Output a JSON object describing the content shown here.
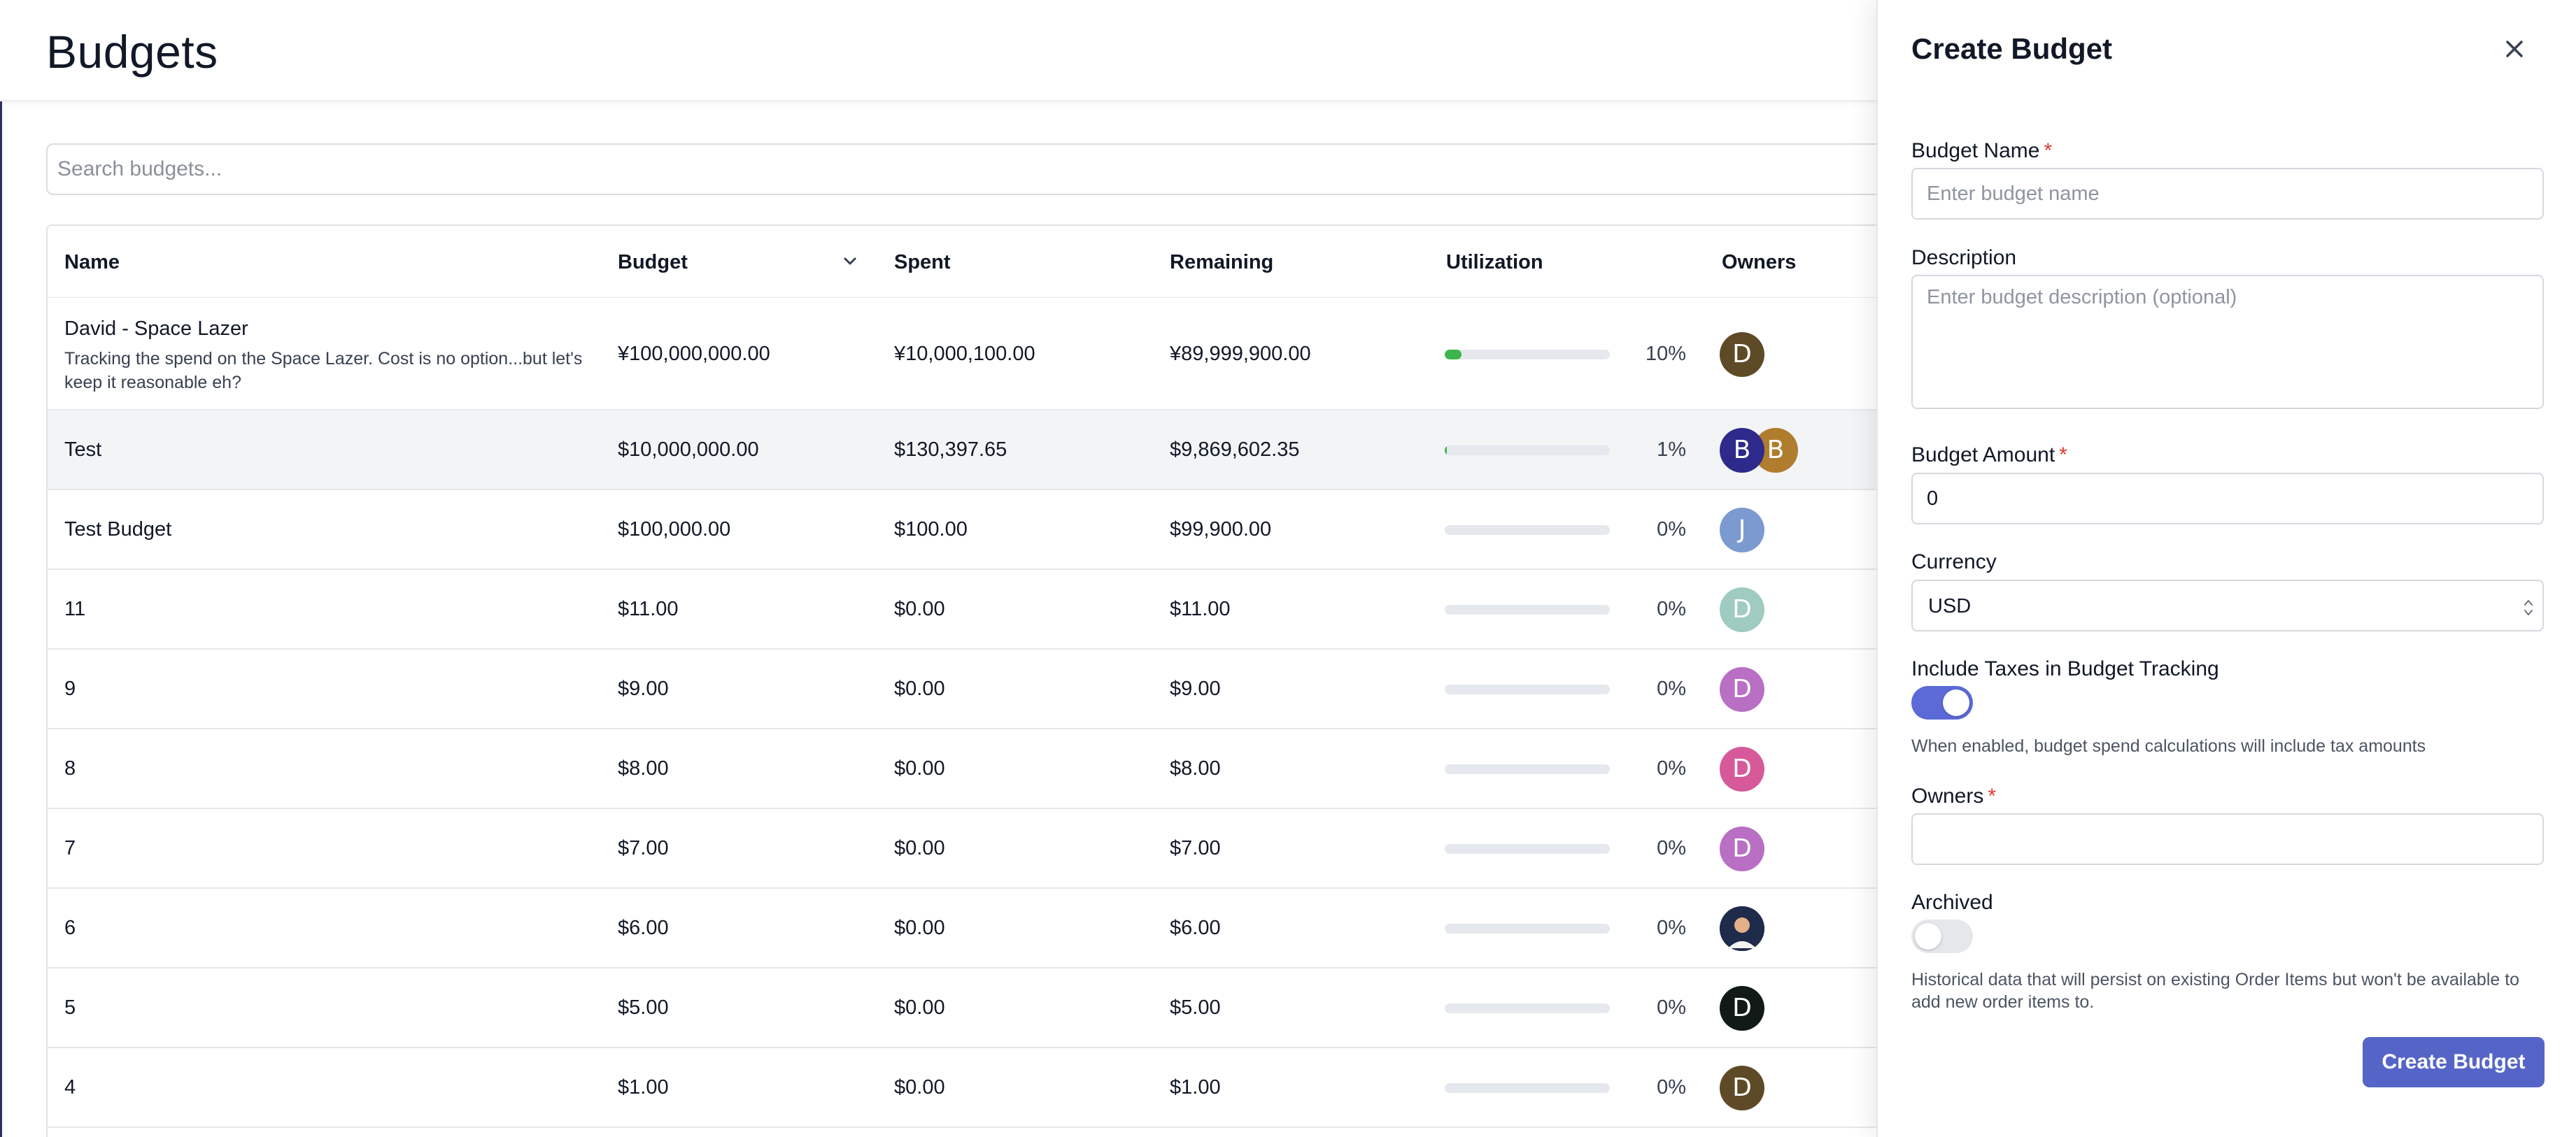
{
  "page": {
    "title": "Budgets"
  },
  "search": {
    "placeholder": "Search budgets...",
    "value": ""
  },
  "table": {
    "headers": {
      "name": "Name",
      "budget": "Budget",
      "spent": "Spent",
      "remaining": "Remaining",
      "utilization": "Utilization",
      "owners": "Owners"
    },
    "rows": [
      {
        "name": "David - Space Lazer",
        "description": "Tracking the spend on the Space Lazer. Cost is no option...but let's keep it reasonable eh?",
        "budget": "¥100,000,000.00",
        "spent": "¥10,000,100.00",
        "remaining": "¥89,999,900.00",
        "utilization": "10%",
        "utilization_value": 0.1,
        "owners": [
          {
            "initial": "D",
            "color": "#5e4a26"
          }
        ]
      },
      {
        "name": "Test",
        "description": "",
        "budget": "$10,000,000.00",
        "spent": "$130,397.65",
        "remaining": "$9,869,602.35",
        "utilization": "1%",
        "utilization_value": 0.013,
        "owners": [
          {
            "initial": "B",
            "color": "#2d2a8c"
          },
          {
            "initial": "B",
            "color": "#b07c2e"
          }
        ]
      },
      {
        "name": "Test Budget",
        "description": "",
        "budget": "$100,000.00",
        "spent": "$100.00",
        "remaining": "$99,900.00",
        "utilization": "0%",
        "utilization_value": 0,
        "owners": [
          {
            "initial": "J",
            "color": "#7b9bd0"
          }
        ]
      },
      {
        "name": "11",
        "description": "",
        "budget": "$11.00",
        "spent": "$0.00",
        "remaining": "$11.00",
        "utilization": "0%",
        "utilization_value": 0,
        "owners": [
          {
            "initial": "D",
            "color": "#9fcbc0"
          }
        ]
      },
      {
        "name": "9",
        "description": "",
        "budget": "$9.00",
        "spent": "$0.00",
        "remaining": "$9.00",
        "utilization": "0%",
        "utilization_value": 0,
        "owners": [
          {
            "initial": "D",
            "color": "#b86fc4"
          }
        ]
      },
      {
        "name": "8",
        "description": "",
        "budget": "$8.00",
        "spent": "$0.00",
        "remaining": "$8.00",
        "utilization": "0%",
        "utilization_value": 0,
        "owners": [
          {
            "initial": "D",
            "color": "#d65a9a"
          }
        ]
      },
      {
        "name": "7",
        "description": "",
        "budget": "$7.00",
        "spent": "$0.00",
        "remaining": "$7.00",
        "utilization": "0%",
        "utilization_value": 0,
        "owners": [
          {
            "initial": "D",
            "color": "#b86fc4"
          }
        ]
      },
      {
        "name": "6",
        "description": "",
        "budget": "$6.00",
        "spent": "$0.00",
        "remaining": "$6.00",
        "utilization": "0%",
        "utilization_value": 0,
        "owners": [
          {
            "initial": "",
            "color": "#1f2b4a",
            "photo": true
          }
        ]
      },
      {
        "name": "5",
        "description": "",
        "budget": "$5.00",
        "spent": "$0.00",
        "remaining": "$5.00",
        "utilization": "0%",
        "utilization_value": 0,
        "owners": [
          {
            "initial": "D",
            "color": "#111a16"
          }
        ]
      },
      {
        "name": "4",
        "description": "",
        "budget": "$1.00",
        "spent": "$0.00",
        "remaining": "$1.00",
        "utilization": "0%",
        "utilization_value": 0,
        "owners": [
          {
            "initial": "D",
            "color": "#5e4a26"
          }
        ]
      }
    ]
  },
  "panel": {
    "title": "Create Budget",
    "budget_name": {
      "label": "Budget Name",
      "placeholder": "Enter budget name",
      "value": ""
    },
    "description": {
      "label": "Description",
      "placeholder": "Enter budget description (optional)",
      "value": ""
    },
    "amount": {
      "label": "Budget Amount",
      "value": "0"
    },
    "currency": {
      "label": "Currency",
      "value": "USD"
    },
    "include_taxes": {
      "label": "Include Taxes in Budget Tracking",
      "enabled": true,
      "help": "When enabled, budget spend calculations will include tax amounts"
    },
    "owners": {
      "label": "Owners",
      "value": ""
    },
    "archived": {
      "label": "Archived",
      "enabled": false,
      "help": "Historical data that will persist on existing Order Items but won't be available to add new order items to."
    },
    "required_mark": "*",
    "submit_label": "Create Budget"
  },
  "colors": {
    "accent": "#5565c7",
    "toggle_on": "#5b6ad6",
    "progress": "#3cb54a",
    "required": "#e03a2f"
  }
}
